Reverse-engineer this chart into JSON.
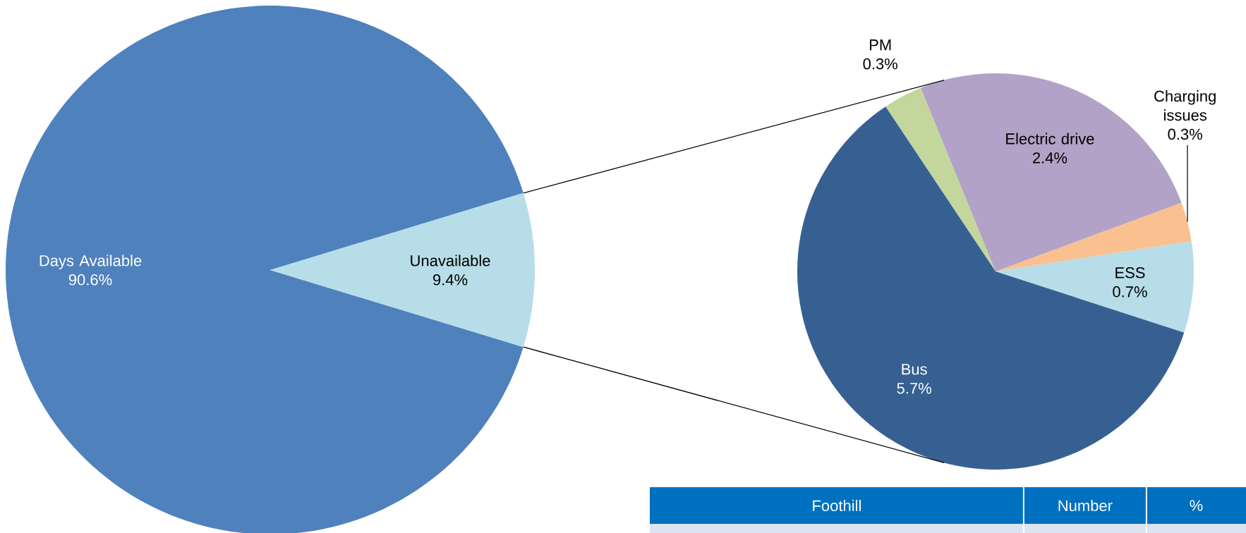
{
  "chart_data": [
    {
      "type": "pie",
      "categories": [
        "Days Available",
        "Unavailable"
      ],
      "values": [
        90.6,
        9.4
      ],
      "value_labels": [
        "90.6%",
        "9.4%"
      ],
      "colors": [
        "#4f81bd",
        "#b7dde8"
      ]
    },
    {
      "type": "pie",
      "categories": [
        "ESS",
        "Charging issues",
        "Electric drive",
        "PM",
        "Bus"
      ],
      "values": [
        0.7,
        0.3,
        2.4,
        0.3,
        5.7
      ],
      "value_labels": [
        "0.7%",
        "0.3%",
        "2.4%",
        "0.3%",
        "5.7%"
      ],
      "colors": [
        "#b7dde8",
        "#fac090",
        "#b3a2c7",
        "#c3d69b",
        "#376092"
      ]
    },
    {
      "type": "other",
      "categories": [
        "Foothill",
        "Number",
        "%"
      ],
      "color": "#0070c0"
    }
  ]
}
